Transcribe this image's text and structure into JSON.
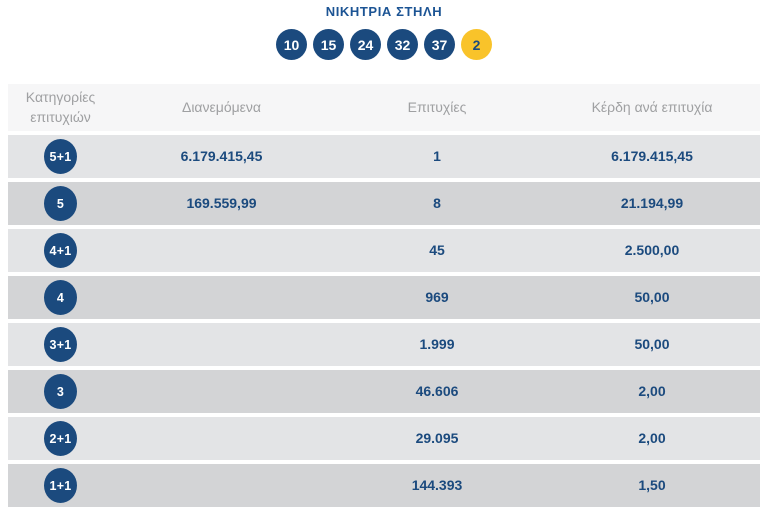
{
  "winning_column": {
    "title": "ΝΙΚΗΤΡΙΑ ΣΤΗΛΗ",
    "numbers": [
      "10",
      "15",
      "24",
      "32",
      "37"
    ],
    "bonus": "2"
  },
  "table": {
    "headers": {
      "category": "Κατηγορίες επιτυχιών",
      "distributed": "Διανεμόμενα",
      "winners": "Επιτυχίες",
      "prize_per_winner": "Κέρδη ανά επιτυχία"
    },
    "rows": [
      {
        "category": "5+1",
        "distributed": "6.179.415,45",
        "winners": "1",
        "prize_per_winner": "6.179.415,45"
      },
      {
        "category": "5",
        "distributed": "169.559,99",
        "winners": "8",
        "prize_per_winner": "21.194,99"
      },
      {
        "category": "4+1",
        "distributed": "",
        "winners": "45",
        "prize_per_winner": "2.500,00"
      },
      {
        "category": "4",
        "distributed": "",
        "winners": "969",
        "prize_per_winner": "50,00"
      },
      {
        "category": "3+1",
        "distributed": "",
        "winners": "1.999",
        "prize_per_winner": "50,00"
      },
      {
        "category": "3",
        "distributed": "",
        "winners": "46.606",
        "prize_per_winner": "2,00"
      },
      {
        "category": "2+1",
        "distributed": "",
        "winners": "29.095",
        "prize_per_winner": "2,00"
      },
      {
        "category": "1+1",
        "distributed": "",
        "winners": "144.393",
        "prize_per_winner": "1,50"
      }
    ]
  },
  "colors": {
    "navy": "#1b4a7e",
    "title_blue": "#1c5494",
    "joker_yellow": "#f9c32a",
    "header_row_bg": "#f6f6f7",
    "row_light": "#e3e4e6",
    "row_dark": "#d3d4d6",
    "header_text": "#9fa0a2"
  }
}
